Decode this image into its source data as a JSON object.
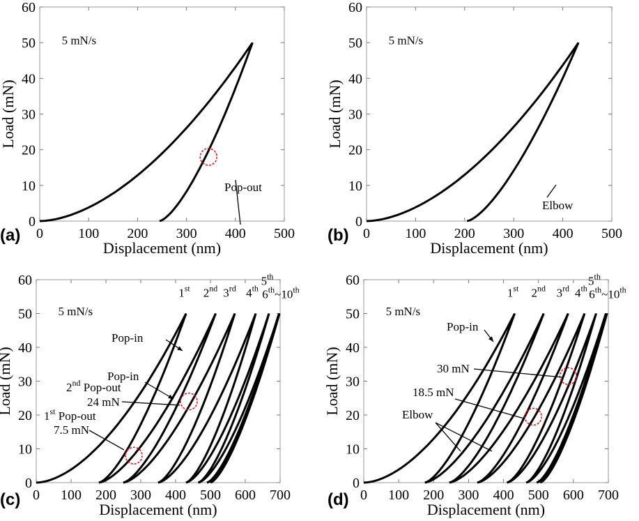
{
  "chart_data": [
    {
      "panel": "(a)",
      "type": "line",
      "xlabel": "Displacement (nm)",
      "ylabel": "Load (mN)",
      "xlim": [
        0,
        500
      ],
      "ylim": [
        0,
        60
      ],
      "xticks": [
        0,
        100,
        200,
        300,
        400,
        500
      ],
      "yticks": [
        0,
        10,
        20,
        30,
        40,
        50,
        60
      ],
      "rate_label": "5 mN/s",
      "cycles": [
        {
          "load_start": 0,
          "peak": 435,
          "unload_end": 245,
          "peak_load": 50
        }
      ],
      "annotations": [
        {
          "text": "Pop-out",
          "x": 345,
          "y": 18,
          "color": "#000000",
          "circle": true
        }
      ]
    },
    {
      "panel": "(b)",
      "type": "line",
      "xlabel": "Displacement (nm)",
      "ylabel": "Load (mN)",
      "xlim": [
        0,
        500
      ],
      "ylim": [
        0,
        60
      ],
      "xticks": [
        0,
        100,
        200,
        300,
        400,
        500
      ],
      "yticks": [
        0,
        10,
        20,
        30,
        40,
        50,
        60
      ],
      "rate_label": "5 mN/s",
      "cycles": [
        {
          "load_start": 0,
          "peak": 432,
          "unload_end": 205,
          "peak_load": 50
        }
      ],
      "annotations": [
        {
          "text": "Elbow",
          "x": 325,
          "y": 10,
          "color": "#000000",
          "circle": false
        }
      ]
    },
    {
      "panel": "(c)",
      "type": "line",
      "xlabel": "Displacement (nm)",
      "ylabel": "Load (mN)",
      "xlim": [
        0,
        700
      ],
      "ylim": [
        0,
        60
      ],
      "xticks": [
        0,
        100,
        200,
        300,
        400,
        500,
        600,
        700
      ],
      "yticks": [
        0,
        10,
        20,
        30,
        40,
        50,
        60
      ],
      "rate_label": "5 mN/s",
      "cycle_labels": [
        "1st",
        "2nd",
        "3rd",
        "4th",
        "5th",
        "6th~10th"
      ],
      "cycles": [
        {
          "load_start": 0,
          "peak": 430,
          "unload_end": 180,
          "peak_load": 50
        },
        {
          "load_start": 180,
          "peak": 515,
          "unload_end": 250,
          "peak_load": 50
        },
        {
          "load_start": 250,
          "peak": 570,
          "unload_end": 350,
          "peak_load": 50
        },
        {
          "load_start": 350,
          "peak": 630,
          "unload_end": 430,
          "peak_load": 50
        },
        {
          "load_start": 430,
          "peak": 668,
          "unload_end": 465,
          "peak_load": 50
        },
        {
          "load_start": 465,
          "peak": 697,
          "unload_end": 490,
          "peak_load": 50
        },
        {
          "load_start": 490,
          "peak": 698,
          "unload_end": 500,
          "peak_load": 50
        }
      ],
      "annotations": [
        {
          "text": "Pop-in",
          "color": "#000000"
        },
        {
          "text": "Pop-in",
          "color": "#000000"
        },
        {
          "text": "2nd Pop-out",
          "color": "#0000ff"
        },
        {
          "text": "24 mN",
          "x": 438,
          "y": 24,
          "color": "#000000",
          "circle": true
        },
        {
          "text": "1st Pop-out",
          "color": "#ff0000"
        },
        {
          "text": "7.5 mN",
          "x": 280,
          "y": 8,
          "color": "#000000",
          "circle": true
        }
      ]
    },
    {
      "panel": "(d)",
      "type": "line",
      "xlabel": "Displacement (nm)",
      "ylabel": "Load (mN)",
      "xlim": [
        0,
        700
      ],
      "ylim": [
        0,
        60
      ],
      "xticks": [
        0,
        100,
        200,
        300,
        400,
        500,
        600,
        700
      ],
      "yticks": [
        0,
        10,
        20,
        30,
        40,
        50,
        60
      ],
      "rate_label": "5 mN/s",
      "cycle_labels": [
        "1st",
        "2nd",
        "3rd",
        "4th",
        "5th",
        "6th~10th"
      ],
      "cycles": [
        {
          "load_start": 0,
          "peak": 432,
          "unload_end": 175,
          "peak_load": 50
        },
        {
          "load_start": 175,
          "peak": 515,
          "unload_end": 245,
          "peak_load": 50
        },
        {
          "load_start": 245,
          "peak": 585,
          "unload_end": 325,
          "peak_load": 50
        },
        {
          "load_start": 325,
          "peak": 632,
          "unload_end": 410,
          "peak_load": 50
        },
        {
          "load_start": 410,
          "peak": 665,
          "unload_end": 465,
          "peak_load": 50
        },
        {
          "load_start": 465,
          "peak": 693,
          "unload_end": 495,
          "peak_load": 50
        },
        {
          "load_start": 495,
          "peak": 696,
          "unload_end": 505,
          "peak_load": 50
        }
      ],
      "annotations": [
        {
          "text": "Pop-in",
          "color": "#000000"
        },
        {
          "text": "30 mN",
          "x": 585,
          "y": 31.5,
          "color": "#000000",
          "circle": true
        },
        {
          "text": "18.5 mN",
          "x": 485,
          "y": 19.5,
          "color": "#000000",
          "circle": true
        },
        {
          "text": "Elbow",
          "color": "#000000"
        }
      ]
    }
  ]
}
